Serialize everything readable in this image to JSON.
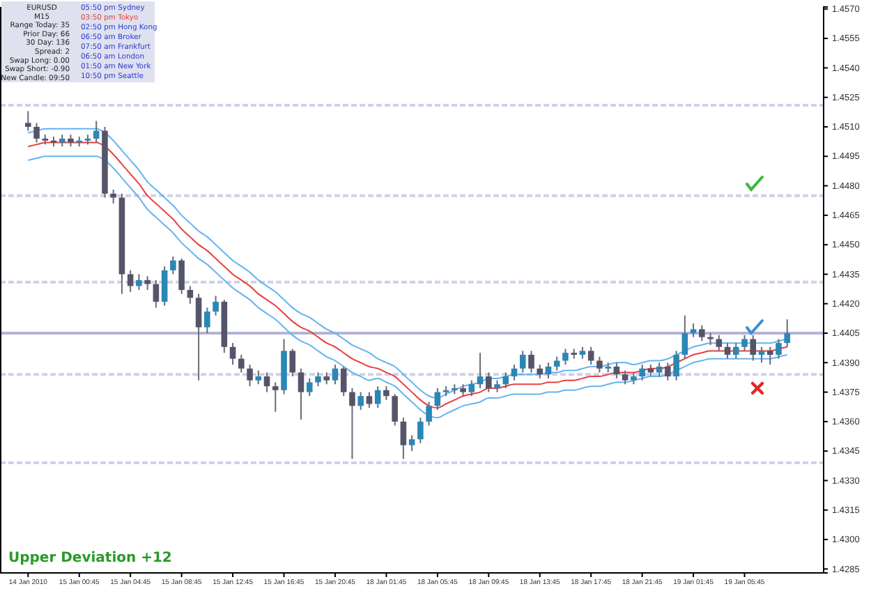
{
  "chart_data": {
    "type": "candlestick",
    "categories": [
      "14 Jan 2010",
      null,
      null,
      null,
      null,
      null,
      "15 Jan 00:45",
      null,
      null,
      null,
      null,
      null,
      "15 Jan 04:45",
      null,
      null,
      null,
      null,
      null,
      "15 Jan 08:45",
      null,
      null,
      null,
      null,
      null,
      "15 Jan 12:45",
      null,
      null,
      null,
      null,
      null,
      "15 Jan 16:45",
      null,
      null,
      null,
      null,
      null,
      "15 Jan 20:45",
      null,
      null,
      null,
      null,
      null,
      "18 Jan 01:45",
      null,
      null,
      null,
      null,
      null,
      "18 Jan 05:45",
      null,
      null,
      null,
      null,
      null,
      "18 Jan 09:45",
      null,
      null,
      null,
      null,
      null,
      "18 Jan 13:45",
      null,
      null,
      null,
      null,
      null,
      "18 Jan 17:45",
      null,
      null,
      null,
      null,
      null,
      "18 Jan 21:45",
      null,
      null,
      null,
      null,
      null,
      "19 Jan 01:45",
      null,
      null,
      null,
      null,
      null,
      "19 Jan 05:45",
      null,
      null,
      null,
      null,
      null
    ],
    "ohlc": [
      [
        1.4512,
        1.4518,
        1.4508,
        1.451
      ],
      [
        1.451,
        1.4512,
        1.4502,
        1.4504
      ],
      [
        1.4504,
        1.4506,
        1.4501,
        1.4503
      ],
      [
        1.4503,
        1.4505,
        1.45,
        1.4502
      ],
      [
        1.4502,
        1.4506,
        1.45,
        1.4504
      ],
      [
        1.4504,
        1.4506,
        1.45,
        1.4502
      ],
      [
        1.4502,
        1.4505,
        1.45,
        1.4503
      ],
      [
        1.4503,
        1.4506,
        1.4501,
        1.4504
      ],
      [
        1.4504,
        1.4513,
        1.4502,
        1.4508
      ],
      [
        1.4508,
        1.451,
        1.4474,
        1.4476
      ],
      [
        1.4476,
        1.4478,
        1.4471,
        1.4474
      ],
      [
        1.4474,
        1.4476,
        1.4425,
        1.4435
      ],
      [
        1.4435,
        1.4437,
        1.4426,
        1.4429
      ],
      [
        1.4429,
        1.4435,
        1.4427,
        1.4432
      ],
      [
        1.4432,
        1.4434,
        1.4427,
        1.443
      ],
      [
        1.443,
        1.4432,
        1.4418,
        1.4421
      ],
      [
        1.4421,
        1.4439,
        1.4419,
        1.4437
      ],
      [
        1.4437,
        1.4444,
        1.4435,
        1.4442
      ],
      [
        1.4442,
        1.4443,
        1.4425,
        1.4427
      ],
      [
        1.4427,
        1.4429,
        1.442,
        1.4423
      ],
      [
        1.4423,
        1.4425,
        1.4381,
        1.4408
      ],
      [
        1.4408,
        1.4418,
        1.4405,
        1.4416
      ],
      [
        1.4416,
        1.4424,
        1.4414,
        1.4421
      ],
      [
        1.4421,
        1.4422,
        1.4395,
        1.4398
      ],
      [
        1.4398,
        1.44,
        1.4389,
        1.4392
      ],
      [
        1.4392,
        1.4394,
        1.4385,
        1.4387
      ],
      [
        1.4387,
        1.4389,
        1.4378,
        1.4381
      ],
      [
        1.4381,
        1.4386,
        1.4379,
        1.4383
      ],
      [
        1.4383,
        1.4385,
        1.4375,
        1.4378
      ],
      [
        1.4378,
        1.438,
        1.4365,
        1.4376
      ],
      [
        1.4376,
        1.4402,
        1.4374,
        1.4396
      ],
      [
        1.4396,
        1.4397,
        1.4383,
        1.4385
      ],
      [
        1.4385,
        1.4387,
        1.4361,
        1.4375
      ],
      [
        1.4375,
        1.4382,
        1.4373,
        1.438
      ],
      [
        1.438,
        1.4385,
        1.4378,
        1.4383
      ],
      [
        1.4383,
        1.4385,
        1.4379,
        1.4381
      ],
      [
        1.4381,
        1.4389,
        1.4379,
        1.4387
      ],
      [
        1.4387,
        1.4388,
        1.4373,
        1.4375
      ],
      [
        1.4375,
        1.4377,
        1.4341,
        1.4368
      ],
      [
        1.4368,
        1.4375,
        1.4366,
        1.4373
      ],
      [
        1.4373,
        1.4375,
        1.4367,
        1.4369
      ],
      [
        1.4369,
        1.4378,
        1.4367,
        1.4376
      ],
      [
        1.4376,
        1.4378,
        1.4371,
        1.4373
      ],
      [
        1.4373,
        1.4374,
        1.4358,
        1.436
      ],
      [
        1.436,
        1.4362,
        1.4341,
        1.4348
      ],
      [
        1.4348,
        1.4353,
        1.4345,
        1.4351
      ],
      [
        1.4351,
        1.4362,
        1.4349,
        1.436
      ],
      [
        1.436,
        1.437,
        1.4358,
        1.4368
      ],
      [
        1.4368,
        1.4377,
        1.4366,
        1.4375
      ],
      [
        1.4375,
        1.4378,
        1.4373,
        1.4376
      ],
      [
        1.4376,
        1.4379,
        1.4374,
        1.4377
      ],
      [
        1.4377,
        1.4379,
        1.4373,
        1.4375
      ],
      [
        1.4375,
        1.4381,
        1.4373,
        1.4379
      ],
      [
        1.4379,
        1.4395,
        1.4377,
        1.4383
      ],
      [
        1.4383,
        1.4385,
        1.4375,
        1.4377
      ],
      [
        1.4377,
        1.4381,
        1.4375,
        1.4379
      ],
      [
        1.4379,
        1.4385,
        1.4377,
        1.4383
      ],
      [
        1.4383,
        1.4389,
        1.4381,
        1.4387
      ],
      [
        1.4387,
        1.4396,
        1.4385,
        1.4394
      ],
      [
        1.4394,
        1.4396,
        1.4385,
        1.4387
      ],
      [
        1.4387,
        1.4389,
        1.4382,
        1.4384
      ],
      [
        1.4384,
        1.439,
        1.4382,
        1.4388
      ],
      [
        1.4388,
        1.4393,
        1.4386,
        1.4391
      ],
      [
        1.4391,
        1.4397,
        1.4389,
        1.4395
      ],
      [
        1.4395,
        1.4397,
        1.4392,
        1.4394
      ],
      [
        1.4394,
        1.4398,
        1.4392,
        1.4396
      ],
      [
        1.4396,
        1.4398,
        1.4389,
        1.4391
      ],
      [
        1.4391,
        1.4393,
        1.4385,
        1.4387
      ],
      [
        1.4387,
        1.439,
        1.4385,
        1.4388
      ],
      [
        1.4388,
        1.439,
        1.4382,
        1.4384
      ],
      [
        1.4384,
        1.4386,
        1.4379,
        1.4381
      ],
      [
        1.4381,
        1.4385,
        1.4379,
        1.4383
      ],
      [
        1.4383,
        1.4389,
        1.4381,
        1.4387
      ],
      [
        1.4387,
        1.4389,
        1.4383,
        1.4385
      ],
      [
        1.4385,
        1.439,
        1.4383,
        1.4388
      ],
      [
        1.4388,
        1.439,
        1.4381,
        1.4383
      ],
      [
        1.4383,
        1.4396,
        1.4381,
        1.4394
      ],
      [
        1.4394,
        1.4414,
        1.4392,
        1.4405
      ],
      [
        1.4405,
        1.441,
        1.4403,
        1.4407
      ],
      [
        1.4407,
        1.4409,
        1.4401,
        1.4403
      ],
      [
        1.4403,
        1.4405,
        1.4399,
        1.4402
      ],
      [
        1.4402,
        1.4404,
        1.4396,
        1.4398
      ],
      [
        1.4398,
        1.44,
        1.4392,
        1.4394
      ],
      [
        1.4394,
        1.44,
        1.4392,
        1.4398
      ],
      [
        1.4398,
        1.4404,
        1.4396,
        1.4402
      ],
      [
        1.4402,
        1.4404,
        1.4391,
        1.4394
      ],
      [
        1.4394,
        1.4398,
        1.439,
        1.4396
      ],
      [
        1.4396,
        1.4398,
        1.4389,
        1.4394
      ],
      [
        1.4394,
        1.4402,
        1.4392,
        1.44
      ],
      [
        1.44,
        1.4412,
        1.4398,
        1.4405
      ]
    ],
    "series": [
      {
        "type": "line",
        "color": "#66b3f0",
        "values": [
          1.4507,
          1.4508,
          1.4509,
          1.4509,
          1.4509,
          1.4509,
          1.4509,
          1.4509,
          1.4509,
          1.4507,
          1.4503,
          1.4498,
          1.4493,
          1.4488,
          1.4482,
          1.4478,
          1.4474,
          1.447,
          1.4465,
          1.4461,
          1.4457,
          1.4454,
          1.445,
          1.4446,
          1.4442,
          1.4439,
          1.4436,
          1.4432,
          1.4429,
          1.4426,
          1.4422,
          1.4418,
          1.4415,
          1.4413,
          1.441,
          1.4407,
          1.4405,
          1.4402,
          1.4399,
          1.4397,
          1.4395,
          1.4392,
          1.439,
          1.4388,
          1.4384,
          1.438,
          1.4376,
          1.4373,
          1.4372,
          1.4374,
          1.4376,
          1.4378,
          1.4379,
          1.438,
          1.4382,
          1.4382,
          1.4383,
          1.4384,
          1.4384,
          1.4384,
          1.4384,
          1.4385,
          1.4385,
          1.4386,
          1.4386,
          1.4387,
          1.4388,
          1.4388,
          1.4389,
          1.439,
          1.439,
          1.4389,
          1.439,
          1.4391,
          1.4391,
          1.4392,
          1.4394,
          1.4396,
          1.4398,
          1.4399,
          1.44,
          1.44,
          1.44,
          1.44,
          1.44,
          1.44,
          1.44,
          1.44,
          1.4401,
          1.4402
        ]
      },
      {
        "type": "line",
        "color": "#66b3f0",
        "values": [
          1.4493,
          1.4494,
          1.4495,
          1.4495,
          1.4495,
          1.4495,
          1.4495,
          1.4495,
          1.4495,
          1.4493,
          1.4489,
          1.4484,
          1.4479,
          1.4474,
          1.4468,
          1.4464,
          1.446,
          1.4456,
          1.4451,
          1.4447,
          1.4443,
          1.444,
          1.4436,
          1.4432,
          1.4428,
          1.4425,
          1.4422,
          1.4418,
          1.4415,
          1.4412,
          1.4408,
          1.4404,
          1.4401,
          1.4399,
          1.4396,
          1.4393,
          1.4391,
          1.4388,
          1.4385,
          1.4383,
          1.4381,
          1.4382,
          1.438,
          1.4378,
          1.4374,
          1.437,
          1.4366,
          1.4363,
          1.4362,
          1.4364,
          1.4366,
          1.4368,
          1.4369,
          1.437,
          1.4372,
          1.4372,
          1.4373,
          1.4374,
          1.4374,
          1.4374,
          1.4374,
          1.4375,
          1.4375,
          1.4376,
          1.4376,
          1.4377,
          1.4378,
          1.4378,
          1.4379,
          1.438,
          1.438,
          1.4381,
          1.4382,
          1.4383,
          1.4383,
          1.4384,
          1.4386,
          1.4388,
          1.439,
          1.4391,
          1.4392,
          1.4392,
          1.4392,
          1.4392,
          1.4392,
          1.4392,
          1.4392,
          1.4392,
          1.4393,
          1.4394
        ]
      },
      {
        "type": "line",
        "color": "#e84040",
        "values": [
          1.45,
          1.4501,
          1.4502,
          1.4502,
          1.4502,
          1.4502,
          1.4502,
          1.4502,
          1.4502,
          1.45,
          1.4496,
          1.4491,
          1.4486,
          1.4481,
          1.4475,
          1.4471,
          1.4467,
          1.4463,
          1.4458,
          1.4454,
          1.445,
          1.4447,
          1.4443,
          1.4439,
          1.4435,
          1.4432,
          1.4429,
          1.4425,
          1.4422,
          1.4419,
          1.4415,
          1.4411,
          1.4408,
          1.4406,
          1.4403,
          1.44,
          1.4398,
          1.4395,
          1.4392,
          1.439,
          1.4388,
          1.4387,
          1.4385,
          1.4383,
          1.4379,
          1.4375,
          1.4371,
          1.4368,
          1.4367,
          1.4369,
          1.4371,
          1.4373,
          1.4374,
          1.4375,
          1.4377,
          1.4377,
          1.4378,
          1.4379,
          1.4379,
          1.4379,
          1.4379,
          1.438,
          1.438,
          1.4381,
          1.4381,
          1.4382,
          1.4383,
          1.4383,
          1.4384,
          1.4385,
          1.4385,
          1.4385,
          1.4386,
          1.4387,
          1.4387,
          1.4388,
          1.439,
          1.4392,
          1.4394,
          1.4395,
          1.4396,
          1.4396,
          1.4396,
          1.4396,
          1.4396,
          1.4396,
          1.4396,
          1.4396,
          1.4397,
          1.4398
        ]
      }
    ],
    "ylim": [
      1.4283,
      1.4571
    ],
    "yticks": [
      {
        "value": 1.457,
        "label": "1.4570"
      },
      1.4555,
      {
        "value": 1.454,
        "label": "1.4540"
      },
      1.4525,
      {
        "value": 1.451,
        "label": "1.4510"
      },
      1.4495,
      {
        "value": 1.448,
        "label": "1.4480"
      },
      1.4465,
      {
        "value": 1.445,
        "label": "1.4450"
      },
      1.4435,
      {
        "value": 1.442,
        "label": "1.4420"
      },
      1.4405,
      {
        "value": 1.439,
        "label": "1.4390"
      },
      1.4375,
      {
        "value": 1.436,
        "label": "1.4360"
      },
      1.4345,
      {
        "value": 1.433,
        "label": "1.4330"
      },
      1.4315,
      {
        "value": 1.43,
        "label": "1.4300"
      },
      1.4285
    ],
    "ref_lines": [
      {
        "axis": "y",
        "value": 1.4521,
        "color": "#d0d0ec",
        "line_style": "dashed"
      },
      {
        "axis": "y",
        "value": 1.4475,
        "color": "#d0d0ec",
        "line_style": "dashed"
      },
      {
        "axis": "y",
        "value": 1.4431,
        "color": "#d0d0ec",
        "line_style": "dashed"
      },
      {
        "axis": "y",
        "value": 1.4405,
        "color": "#b4b4d4",
        "line_style": "solid"
      },
      {
        "axis": "y",
        "value": 1.4384,
        "color": "#d0d0ec",
        "line_style": "dashed"
      },
      {
        "axis": "y",
        "value": 1.4339,
        "color": "#d0d0ec",
        "line_style": "dashed"
      }
    ],
    "annotations": [
      "EURUSD",
      "M15",
      "Range Today: 35",
      "Prior Day: 66",
      "30 Day: 136",
      "Spread: 2",
      "Swap Long: 0.00",
      "Swap Short: -0.90",
      "New Candle: 09:50",
      "05:50 pm Sydney",
      "03:50 pm Tokyo",
      "02:50 pm Hong Kong",
      "06:50 am Broker",
      "07:50 am Frankfurt",
      "06:50 am London",
      "01:50 am New York",
      "10:50 pm Seattle",
      "Upper Deviation  +12"
    ],
    "grid": false,
    "line_style": "solid"
  }
}
